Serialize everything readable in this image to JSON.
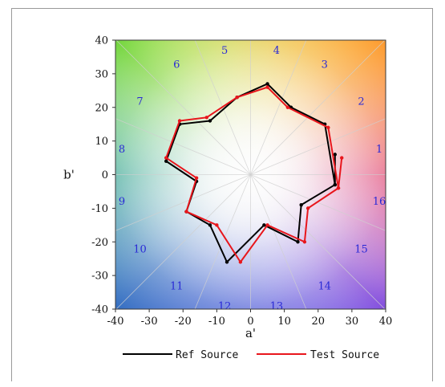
{
  "chart_data": {
    "type": "scatter",
    "subtype": "color-vector-graphic",
    "xlabel": "a'",
    "ylabel": "b'",
    "xlim": [
      -40,
      40
    ],
    "ylim": [
      -40,
      40
    ],
    "xticks": [
      -40,
      -30,
      -20,
      -10,
      0,
      10,
      20,
      30,
      40
    ],
    "yticks": [
      -40,
      -30,
      -20,
      -10,
      0,
      10,
      20,
      30,
      40
    ],
    "grid": "radial hue-bin spokes",
    "legend_position": "bottom",
    "hue_bins": [
      "1",
      "2",
      "3",
      "4",
      "5",
      "6",
      "7",
      "8",
      "9",
      "10",
      "11",
      "12",
      "13",
      "14",
      "15",
      "16"
    ],
    "series": [
      {
        "name": "Ref Source",
        "color": "#000000",
        "x": [
          25,
          25,
          22,
          12,
          5,
          -4,
          -12,
          -21,
          -25,
          -16,
          -19,
          -12,
          -7,
          4,
          14,
          15,
          25
        ],
        "y": [
          6,
          -3,
          15,
          20,
          27,
          23,
          16,
          15,
          4,
          -2,
          -11,
          -15,
          -26,
          -15,
          -20,
          -9,
          -3
        ]
      },
      {
        "name": "Test Source",
        "color": "#e8161c",
        "x": [
          27,
          26,
          23,
          11,
          5,
          -4,
          -13,
          -21,
          -25,
          -16,
          -19,
          -10,
          -3,
          5,
          16,
          17,
          26
        ],
        "y": [
          5,
          -4,
          14,
          20,
          26,
          23,
          17,
          16,
          5,
          -1,
          -11,
          -15,
          -26,
          -15,
          -20,
          -10,
          -4
        ]
      }
    ]
  },
  "legend": {
    "ref_label": "Ref Source",
    "test_label": "Test Source"
  },
  "colors": {
    "ref": "#000000",
    "test": "#e8161c",
    "bin_label": "#2a2ad6"
  }
}
